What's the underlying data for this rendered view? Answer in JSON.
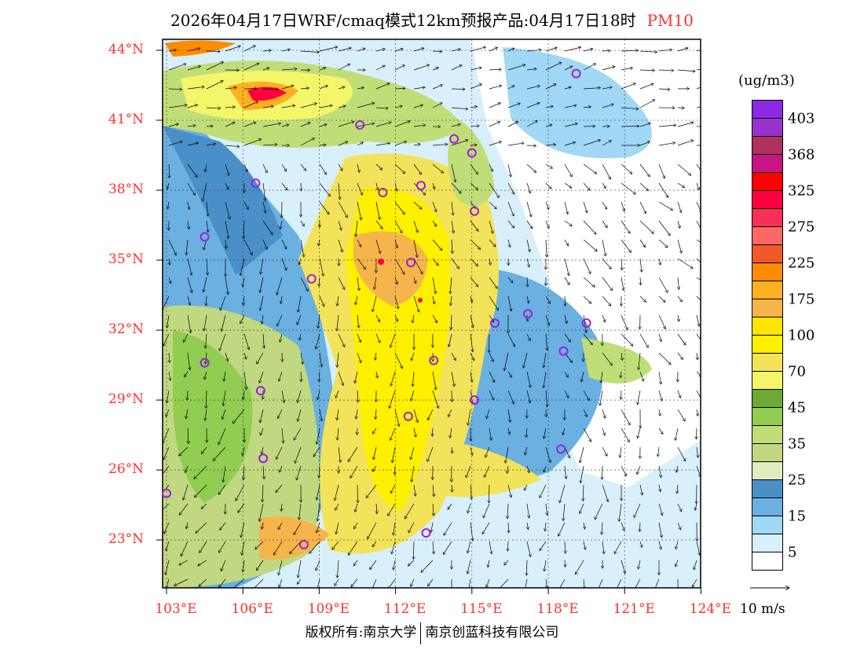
{
  "title": {
    "text": "2026年04月17日WRF/cmaq模式12km预报产品:04月17日18时",
    "variable": "PM10"
  },
  "map": {
    "lon_range": [
      103,
      124
    ],
    "lat_range": [
      20.9,
      44.5
    ],
    "lat_labels": [
      "44°N",
      "41°N",
      "38°N",
      "35°N",
      "32°N",
      "29°N",
      "26°N",
      "23°N"
    ],
    "lat_values": [
      44,
      41,
      38,
      35,
      32,
      29,
      26,
      23
    ],
    "lon_labels": [
      "103°E",
      "106°E",
      "109°E",
      "112°E",
      "115°E",
      "118°E",
      "121°E",
      "124°E"
    ],
    "lon_values": [
      103,
      106,
      109,
      112,
      115,
      118,
      121,
      124
    ],
    "stations": [
      [
        119.1,
        43.0
      ],
      [
        110.6,
        40.8
      ],
      [
        114.3,
        40.2
      ],
      [
        115.0,
        39.6
      ],
      [
        106.5,
        38.3
      ],
      [
        111.5,
        37.9
      ],
      [
        113.0,
        38.2
      ],
      [
        115.1,
        37.1
      ],
      [
        104.5,
        36.0
      ],
      [
        112.6,
        34.9
      ],
      [
        108.7,
        34.2
      ],
      [
        117.2,
        32.7
      ],
      [
        115.9,
        32.3
      ],
      [
        119.5,
        32.3
      ],
      [
        118.6,
        31.1
      ],
      [
        104.5,
        30.6
      ],
      [
        113.5,
        30.7
      ],
      [
        106.7,
        29.4
      ],
      [
        115.1,
        29.0
      ],
      [
        112.5,
        28.3
      ],
      [
        106.8,
        26.5
      ],
      [
        118.5,
        26.9
      ],
      [
        103.0,
        25.0
      ],
      [
        113.2,
        23.3
      ],
      [
        108.4,
        22.8
      ]
    ],
    "station_color": "#9a20e0"
  },
  "colorbar": {
    "unit": "(ug/m3)",
    "colors": [
      "#8a2be2",
      "#9932cc",
      "#b03060",
      "#c71585",
      "#ff0000",
      "#ff0040",
      "#f73058",
      "#ff6666",
      "#f05a28",
      "#ff8c00",
      "#ffb020",
      "#f5b54a",
      "#ffe600",
      "#fff000",
      "#f3e35a",
      "#f5f56a",
      "#6aaa35",
      "#90cd50",
      "#c0de78",
      "#c0d880",
      "#e0ecc0",
      "#4a90c8",
      "#6ab0e0",
      "#a0d8f5",
      "#d8f0fc",
      "#ffffff"
    ],
    "labels": [
      "403",
      "368",
      "325",
      "275",
      "225",
      "175",
      "100",
      "70",
      "45",
      "35",
      "25",
      "15",
      "5"
    ]
  },
  "wind_reference": "10 m/s",
  "copyright": {
    "left": "版权所有:南京大学",
    "right": "南京创蓝科技有限公司"
  }
}
